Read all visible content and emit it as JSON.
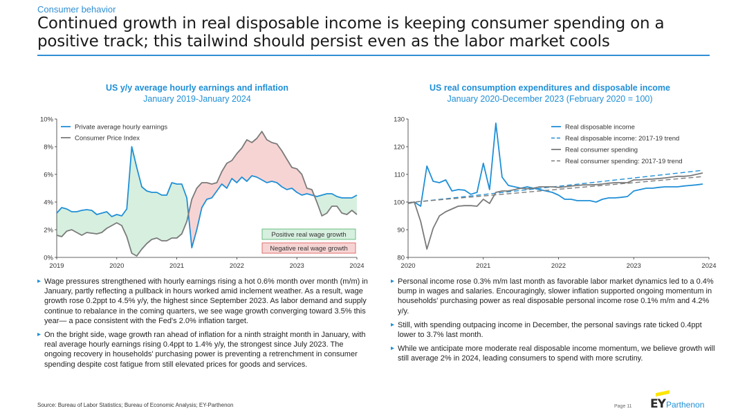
{
  "page": {
    "section": "Consumer behavior",
    "title": "Continued growth in real disposable income is keeping consumer spending on a positive track; this tailwind should persist even as the labor market cools"
  },
  "colors": {
    "accent": "#1f8fd6",
    "grey_line": "#7a7a7a",
    "positive_fill": "#d7efdf",
    "negative_fill": "#f7d4d4",
    "positive_border": "#4caf64",
    "negative_border": "#d9534f"
  },
  "chart_data": [
    {
      "type": "line",
      "title": "US y/y average hourly earnings and inflation",
      "subtitle": "January 2019-January 2024",
      "xlabel": "",
      "ylabel": "",
      "x_ticks": [
        "2019",
        "2020",
        "2021",
        "2022",
        "2023",
        "2024"
      ],
      "y_ticks": [
        "0%",
        "2%",
        "4%",
        "6%",
        "8%",
        "10%"
      ],
      "ylim": [
        0,
        10
      ],
      "xlim": [
        2019,
        2024
      ],
      "grid": false,
      "legend_position": "top-left",
      "shading_legend": [
        "Positive real wage growth",
        "Negative real wage growth"
      ],
      "x": [
        2019.0,
        2019.083,
        2019.167,
        2019.25,
        2019.333,
        2019.417,
        2019.5,
        2019.583,
        2019.667,
        2019.75,
        2019.833,
        2019.917,
        2020.0,
        2020.083,
        2020.167,
        2020.25,
        2020.333,
        2020.417,
        2020.5,
        2020.583,
        2020.667,
        2020.75,
        2020.833,
        2020.917,
        2021.0,
        2021.083,
        2021.167,
        2021.25,
        2021.333,
        2021.417,
        2021.5,
        2021.583,
        2021.667,
        2021.75,
        2021.833,
        2021.917,
        2022.0,
        2022.083,
        2022.167,
        2022.25,
        2022.333,
        2022.417,
        2022.5,
        2022.583,
        2022.667,
        2022.75,
        2022.833,
        2022.917,
        2023.0,
        2023.083,
        2023.167,
        2023.25,
        2023.333,
        2023.417,
        2023.5,
        2023.583,
        2023.667,
        2023.75,
        2023.833,
        2023.917,
        2024.0
      ],
      "series": [
        {
          "name": "Private average hourly earnings",
          "color": "#1f8fd6",
          "values": [
            3.2,
            3.6,
            3.5,
            3.3,
            3.3,
            3.4,
            3.45,
            3.4,
            3.1,
            3.2,
            3.3,
            2.95,
            3.1,
            3.0,
            3.5,
            8.0,
            6.5,
            5.1,
            4.8,
            4.7,
            4.7,
            4.5,
            4.5,
            5.4,
            5.3,
            5.3,
            4.3,
            0.7,
            2.0,
            3.6,
            4.2,
            4.3,
            4.8,
            5.3,
            5.0,
            5.7,
            5.4,
            5.8,
            5.5,
            5.9,
            5.8,
            5.6,
            5.4,
            5.5,
            5.4,
            5.1,
            4.9,
            5.0,
            4.7,
            4.5,
            4.6,
            4.5,
            4.4,
            4.5,
            4.6,
            4.6,
            4.4,
            4.3,
            4.3,
            4.3,
            4.5
          ]
        },
        {
          "name": "Consumer Price Index",
          "color": "#7a7a7a",
          "values": [
            1.6,
            1.5,
            1.9,
            2.0,
            1.8,
            1.6,
            1.8,
            1.75,
            1.7,
            1.8,
            2.1,
            2.3,
            2.5,
            2.3,
            1.5,
            0.3,
            0.1,
            0.6,
            1.0,
            1.3,
            1.4,
            1.2,
            1.2,
            1.4,
            1.4,
            1.7,
            2.6,
            4.2,
            5.0,
            5.4,
            5.4,
            5.3,
            5.4,
            6.2,
            6.8,
            7.0,
            7.5,
            7.9,
            8.5,
            8.3,
            8.6,
            9.1,
            8.5,
            8.3,
            8.2,
            7.7,
            7.1,
            6.5,
            6.4,
            6.0,
            5.0,
            4.9,
            4.0,
            3.0,
            3.2,
            3.7,
            3.7,
            3.2,
            3.1,
            3.4,
            3.1
          ]
        }
      ]
    },
    {
      "type": "line",
      "title": "US real consumption expenditures and disposable income",
      "subtitle": "January 2020-December 2023 (February 2020 = 100)",
      "xlabel": "",
      "ylabel": "",
      "x_ticks": [
        "2020",
        "2021",
        "2022",
        "2023",
        "2024"
      ],
      "y_ticks": [
        "80",
        "90",
        "100",
        "110",
        "120",
        "130"
      ],
      "ylim": [
        80,
        130
      ],
      "xlim": [
        2020,
        2024
      ],
      "grid": false,
      "legend_position": "top-right",
      "x": [
        2020.0,
        2020.083,
        2020.167,
        2020.25,
        2020.333,
        2020.417,
        2020.5,
        2020.583,
        2020.667,
        2020.75,
        2020.833,
        2020.917,
        2021.0,
        2021.083,
        2021.167,
        2021.25,
        2021.333,
        2021.417,
        2021.5,
        2021.583,
        2021.667,
        2021.75,
        2021.833,
        2021.917,
        2022.0,
        2022.083,
        2022.167,
        2022.25,
        2022.333,
        2022.417,
        2022.5,
        2022.583,
        2022.667,
        2022.75,
        2022.833,
        2022.917,
        2023.0,
        2023.083,
        2023.167,
        2023.25,
        2023.333,
        2023.417,
        2023.5,
        2023.583,
        2023.667,
        2023.75,
        2023.833,
        2023.917
      ],
      "series": [
        {
          "name": "Real disposable income",
          "color": "#1f8fd6",
          "dash": "solid",
          "values": [
            99.5,
            100.0,
            98.5,
            113.0,
            107.5,
            107.0,
            108.0,
            104.0,
            104.5,
            104.3,
            102.8,
            103.5,
            114.0,
            104.5,
            128.5,
            109.0,
            106.0,
            105.5,
            105.0,
            105.5,
            105.0,
            104.5,
            104.0,
            103.5,
            102.5,
            101.0,
            101.0,
            100.5,
            100.5,
            100.5,
            100.0,
            101.0,
            101.5,
            101.5,
            101.7,
            102.0,
            104.0,
            104.5,
            105.0,
            105.0,
            105.3,
            105.5,
            105.5,
            105.5,
            105.8,
            106.0,
            106.2,
            106.5
          ]
        },
        {
          "name": "Real disposable income: 2017-19 trend",
          "color": "#1f8fd6",
          "dash": "dashed",
          "values": [
            99.8,
            100.0,
            100.2,
            100.45,
            100.7,
            100.95,
            101.2,
            101.45,
            101.7,
            101.95,
            102.2,
            102.45,
            102.7,
            102.95,
            103.2,
            103.45,
            103.7,
            103.95,
            104.2,
            104.45,
            104.7,
            104.95,
            105.2,
            105.45,
            105.7,
            105.95,
            106.2,
            106.45,
            106.7,
            106.95,
            107.2,
            107.45,
            107.7,
            107.95,
            108.2,
            108.45,
            108.7,
            108.95,
            109.2,
            109.45,
            109.7,
            109.95,
            110.2,
            110.45,
            110.7,
            110.95,
            111.2,
            111.5
          ]
        },
        {
          "name": "Real consumer spending",
          "color": "#7a7a7a",
          "dash": "solid",
          "values": [
            99.5,
            100.0,
            93.0,
            83.0,
            90.5,
            95.0,
            96.5,
            97.5,
            98.5,
            98.7,
            98.7,
            98.5,
            101.0,
            99.5,
            103.5,
            104.0,
            104.0,
            104.5,
            105.0,
            104.8,
            105.0,
            105.5,
            105.5,
            105.5,
            105.3,
            105.5,
            105.8,
            106.0,
            106.2,
            106.2,
            106.3,
            106.5,
            106.8,
            107.0,
            107.0,
            107.0,
            108.0,
            108.0,
            108.2,
            108.3,
            108.5,
            108.7,
            109.0,
            109.3,
            109.3,
            109.5,
            110.0,
            110.5
          ]
        },
        {
          "name": "Real consumer spending: 2017-19 trend",
          "color": "#7a7a7a",
          "dash": "dashed",
          "values": [
            99.8,
            100.0,
            100.2,
            100.4,
            100.6,
            100.8,
            101.0,
            101.2,
            101.4,
            101.6,
            101.8,
            102.0,
            102.2,
            102.4,
            102.6,
            102.8,
            103.0,
            103.2,
            103.4,
            103.6,
            103.8,
            104.0,
            104.2,
            104.4,
            104.6,
            104.8,
            105.0,
            105.2,
            105.4,
            105.6,
            105.8,
            106.0,
            106.2,
            106.4,
            106.6,
            106.8,
            107.0,
            107.2,
            107.4,
            107.6,
            107.8,
            108.0,
            108.2,
            108.4,
            108.6,
            108.8,
            109.0,
            109.2
          ]
        }
      ]
    }
  ],
  "left_bullets": [
    "Wage pressures strengthened with hourly earnings rising a hot 0.6% month over month (m/m) in January, partly reflecting a pullback in hours worked amid inclement weather. As a result, wage growth rose 0.2ppt to 4.5% y/y, the highest since September 2023. As labor demand and supply continue to rebalance in the coming quarters, we see wage growth converging toward 3.5% this year— a pace consistent with the Fed's 2.0% inflation target.",
    "On the bright side, wage growth ran ahead of inflation for a ninth straight month in January, with real average hourly earnings rising 0.4ppt to 1.4% y/y, the strongest since July 2023. The ongoing recovery in households' purchasing power is preventing a retrenchment in consumer spending despite cost fatigue from still elevated prices for goods and services."
  ],
  "right_bullets": [
    "Personal income rose 0.3% m/m last month as favorable labor market dynamics led to a 0.4% bump in wages and salaries. Encouragingly, slower inflation supported ongoing momentum in households' purchasing power as real disposable personal income rose 0.1% m/m and 4.2% y/y.",
    "Still, with spending outpacing income in December, the personal savings rate ticked 0.4ppt lower to 3.7% last month.",
    "While we anticipate more moderate real disposable income momentum, we believe growth will still average 2% in 2024, leading consumers to spend with more scrutiny."
  ],
  "footer": {
    "source": "Source: Bureau of Labor Statistics; Bureau of Economic Analysis; EY-Parthenon",
    "page": "Page 11",
    "brand_ey": "EY",
    "brand_parthenon": "Parthenon"
  }
}
